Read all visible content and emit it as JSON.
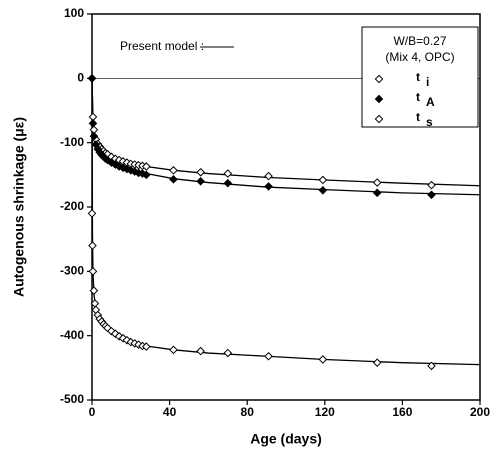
{
  "chart_data": {
    "type": "scatter",
    "xlabel": "Age (days)",
    "ylabel": "Autogenous shrinkage (με)",
    "xlim": [
      0,
      200
    ],
    "ylim": [
      -500,
      100
    ],
    "xticks": [
      0,
      40,
      80,
      120,
      160,
      200
    ],
    "yticks": [
      100,
      0,
      -100,
      -200,
      -300,
      -400,
      -500
    ],
    "legend_title": "W/B=0.27",
    "legend_subtitle": "(Mix 4, OPC)",
    "legend_position": "upper right",
    "series": [
      {
        "name": "t",
        "name_sub": "i",
        "color": "#000000",
        "marker": "open-diamond",
        "x": [
          0,
          0.5,
          1,
          2,
          3,
          4,
          5,
          6,
          7,
          8,
          10,
          12,
          14,
          16,
          18,
          20,
          22,
          24,
          26,
          28,
          42,
          56,
          70,
          91,
          119,
          147,
          175
        ],
        "values": [
          0,
          -60,
          -80,
          -95,
          -102,
          -106,
          -110,
          -113,
          -116,
          -118,
          -122,
          -125,
          -127,
          -129,
          -131,
          -133,
          -134,
          -135,
          -136,
          -137,
          -143,
          -146,
          -148,
          -152,
          -158,
          -162,
          -166
        ]
      },
      {
        "name": "t",
        "name_sub": "A",
        "color": "#000000",
        "marker": "filled-diamond",
        "x": [
          0,
          0.5,
          1,
          2,
          3,
          4,
          5,
          6,
          7,
          8,
          10,
          12,
          14,
          16,
          18,
          20,
          22,
          24,
          26,
          28,
          42,
          56,
          70,
          91,
          119,
          147,
          175
        ],
        "values": [
          0,
          -70,
          -90,
          -103,
          -110,
          -115,
          -119,
          -122,
          -125,
          -127,
          -131,
          -134,
          -137,
          -139,
          -141,
          -143,
          -145,
          -147,
          -148,
          -150,
          -157,
          -160,
          -163,
          -168,
          -174,
          -178,
          -181
        ]
      },
      {
        "name": "t",
        "name_sub": "s",
        "color": "#000000",
        "marker": "open-diamond",
        "x": [
          0,
          0.25,
          0.5,
          1,
          1.5,
          2,
          3,
          4,
          5,
          6,
          7,
          8,
          10,
          12,
          14,
          16,
          18,
          20,
          22,
          24,
          26,
          28,
          42,
          56,
          70,
          91,
          119,
          147,
          175
        ],
        "values": [
          -210,
          -260,
          -300,
          -330,
          -350,
          -360,
          -368,
          -374,
          -378,
          -382,
          -385,
          -388,
          -393,
          -397,
          -401,
          -404,
          -407,
          -410,
          -412,
          -414,
          -416,
          -417,
          -422,
          -424,
          -427,
          -432,
          -437,
          -442,
          -447
        ]
      }
    ],
    "model": {
      "label": "Present model :",
      "color": "#000000",
      "curves": [
        {
          "x": [
            0,
            0.5,
            1,
            2,
            4,
            7,
            10,
            15,
            20,
            28,
            42,
            60,
            90,
            120,
            160,
            200
          ],
          "values": [
            0,
            -65,
            -80,
            -95,
            -106,
            -116,
            -122,
            -128,
            -132,
            -137,
            -143,
            -148,
            -154,
            -158,
            -163,
            -167
          ]
        },
        {
          "x": [
            0,
            0.5,
            1,
            2,
            4,
            7,
            10,
            15,
            20,
            28,
            42,
            60,
            90,
            120,
            160,
            200
          ],
          "values": [
            0,
            -75,
            -92,
            -104,
            -116,
            -125,
            -131,
            -137,
            -142,
            -148,
            -156,
            -162,
            -169,
            -173,
            -178,
            -181
          ]
        },
        {
          "x": [
            0,
            0.25,
            0.5,
            1,
            2,
            4,
            7,
            10,
            15,
            20,
            28,
            42,
            60,
            90,
            120,
            160,
            200
          ],
          "values": [
            0,
            -240,
            -300,
            -335,
            -360,
            -374,
            -385,
            -393,
            -402,
            -409,
            -416,
            -422,
            -427,
            -432,
            -437,
            -442,
            -445
          ]
        }
      ]
    }
  }
}
